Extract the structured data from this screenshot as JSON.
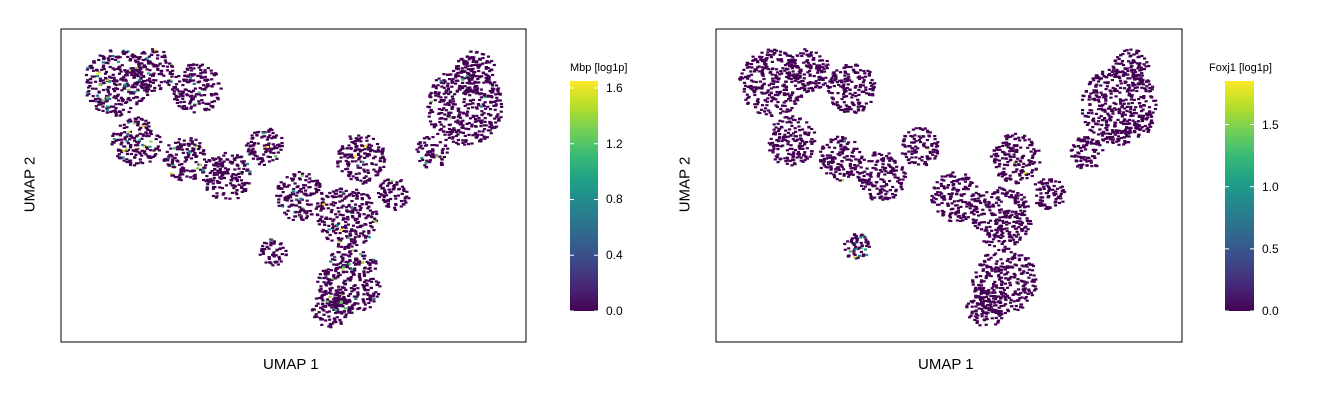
{
  "colormap": "viridis",
  "viridis_stops": [
    "#440154",
    "#482878",
    "#3e4a89",
    "#31688e",
    "#26828e",
    "#1f9e89",
    "#35b779",
    "#6ece58",
    "#b5de2b",
    "#fde725"
  ],
  "chart_data": [
    {
      "type": "scatter",
      "xlabel": "UMAP 1",
      "ylabel": "UMAP 2",
      "grid": false,
      "colorbar": {
        "title": "Mbp [log1p]",
        "range": [
          0,
          1.65
        ],
        "ticks": [
          0.0,
          0.4,
          0.8,
          1.2,
          1.6
        ],
        "tick_labels": [
          "0.0",
          "0.4",
          "0.8",
          "1.2",
          "1.6"
        ]
      },
      "series": [
        {
          "clusters": [
            {
              "x": 1.5,
              "y": 8.4,
              "r": 1.2,
              "hot_rate": 0.12
            },
            {
              "x": 2.8,
              "y": 8.8,
              "r": 0.8,
              "hot_rate": 0.08
            },
            {
              "x": 4.4,
              "y": 8.2,
              "r": 0.9,
              "hot_rate": 0.05
            },
            {
              "x": 2.2,
              "y": 6.4,
              "r": 0.9,
              "hot_rate": 0.1
            },
            {
              "x": 4.0,
              "y": 5.8,
              "r": 0.8,
              "hot_rate": 0.05
            },
            {
              "x": 5.5,
              "y": 5.2,
              "r": 0.9,
              "hot_rate": 0.03
            },
            {
              "x": 6.9,
              "y": 6.2,
              "r": 0.7,
              "hot_rate": 0.02
            },
            {
              "x": 8.2,
              "y": 4.5,
              "r": 0.9,
              "hot_rate": 0.04
            },
            {
              "x": 9.9,
              "y": 3.8,
              "r": 1.1,
              "hot_rate": 0.06
            },
            {
              "x": 10.4,
              "y": 5.8,
              "r": 0.9,
              "hot_rate": 0.03
            },
            {
              "x": 11.6,
              "y": 4.6,
              "r": 0.6,
              "hot_rate": 0.02
            },
            {
              "x": 14.2,
              "y": 7.6,
              "r": 1.4,
              "hot_rate": 0.02
            },
            {
              "x": 14.6,
              "y": 8.9,
              "r": 0.7,
              "hot_rate": 0.02
            },
            {
              "x": 13.0,
              "y": 6.0,
              "r": 0.6,
              "hot_rate": 0.02
            },
            {
              "x": 10.0,
              "y": 1.6,
              "r": 1.2,
              "hot_rate": 0.08
            },
            {
              "x": 9.3,
              "y": 0.7,
              "r": 0.7,
              "hot_rate": 0.06
            },
            {
              "x": 7.2,
              "y": 2.6,
              "r": 0.5,
              "hot_rate": 0.03
            }
          ]
        }
      ]
    },
    {
      "type": "scatter",
      "xlabel": "UMAP 1",
      "ylabel": "UMAP 2",
      "grid": false,
      "colorbar": {
        "title": "Foxj1 [log1p]",
        "range": [
          0,
          1.85
        ],
        "ticks": [
          0.0,
          0.5,
          1.0,
          1.5
        ],
        "tick_labels": [
          "0.0",
          "0.5",
          "1.0",
          "1.5"
        ]
      },
      "series": [
        {
          "clusters": [
            {
              "x": 1.5,
              "y": 8.4,
              "r": 1.2,
              "hot_rate": 0.0
            },
            {
              "x": 2.8,
              "y": 8.8,
              "r": 0.8,
              "hot_rate": 0.0
            },
            {
              "x": 4.4,
              "y": 8.2,
              "r": 0.9,
              "hot_rate": 0.0
            },
            {
              "x": 2.2,
              "y": 6.4,
              "r": 0.9,
              "hot_rate": 0.0
            },
            {
              "x": 4.0,
              "y": 5.8,
              "r": 0.8,
              "hot_rate": 0.01
            },
            {
              "x": 5.5,
              "y": 5.2,
              "r": 0.9,
              "hot_rate": 0.01
            },
            {
              "x": 6.9,
              "y": 6.2,
              "r": 0.7,
              "hot_rate": 0.02
            },
            {
              "x": 8.2,
              "y": 4.5,
              "r": 0.9,
              "hot_rate": 0.0
            },
            {
              "x": 9.9,
              "y": 3.8,
              "r": 1.1,
              "hot_rate": 0.0
            },
            {
              "x": 10.4,
              "y": 5.8,
              "r": 0.9,
              "hot_rate": 0.03
            },
            {
              "x": 11.6,
              "y": 4.6,
              "r": 0.6,
              "hot_rate": 0.0
            },
            {
              "x": 14.2,
              "y": 7.6,
              "r": 1.4,
              "hot_rate": 0.0
            },
            {
              "x": 14.6,
              "y": 8.9,
              "r": 0.7,
              "hot_rate": 0.0
            },
            {
              "x": 13.0,
              "y": 6.0,
              "r": 0.6,
              "hot_rate": 0.0
            },
            {
              "x": 10.0,
              "y": 1.6,
              "r": 1.2,
              "hot_rate": 0.0
            },
            {
              "x": 9.3,
              "y": 0.7,
              "r": 0.7,
              "hot_rate": 0.0
            },
            {
              "x": 4.6,
              "y": 2.8,
              "r": 0.5,
              "hot_rate": 0.25
            }
          ]
        }
      ]
    }
  ]
}
